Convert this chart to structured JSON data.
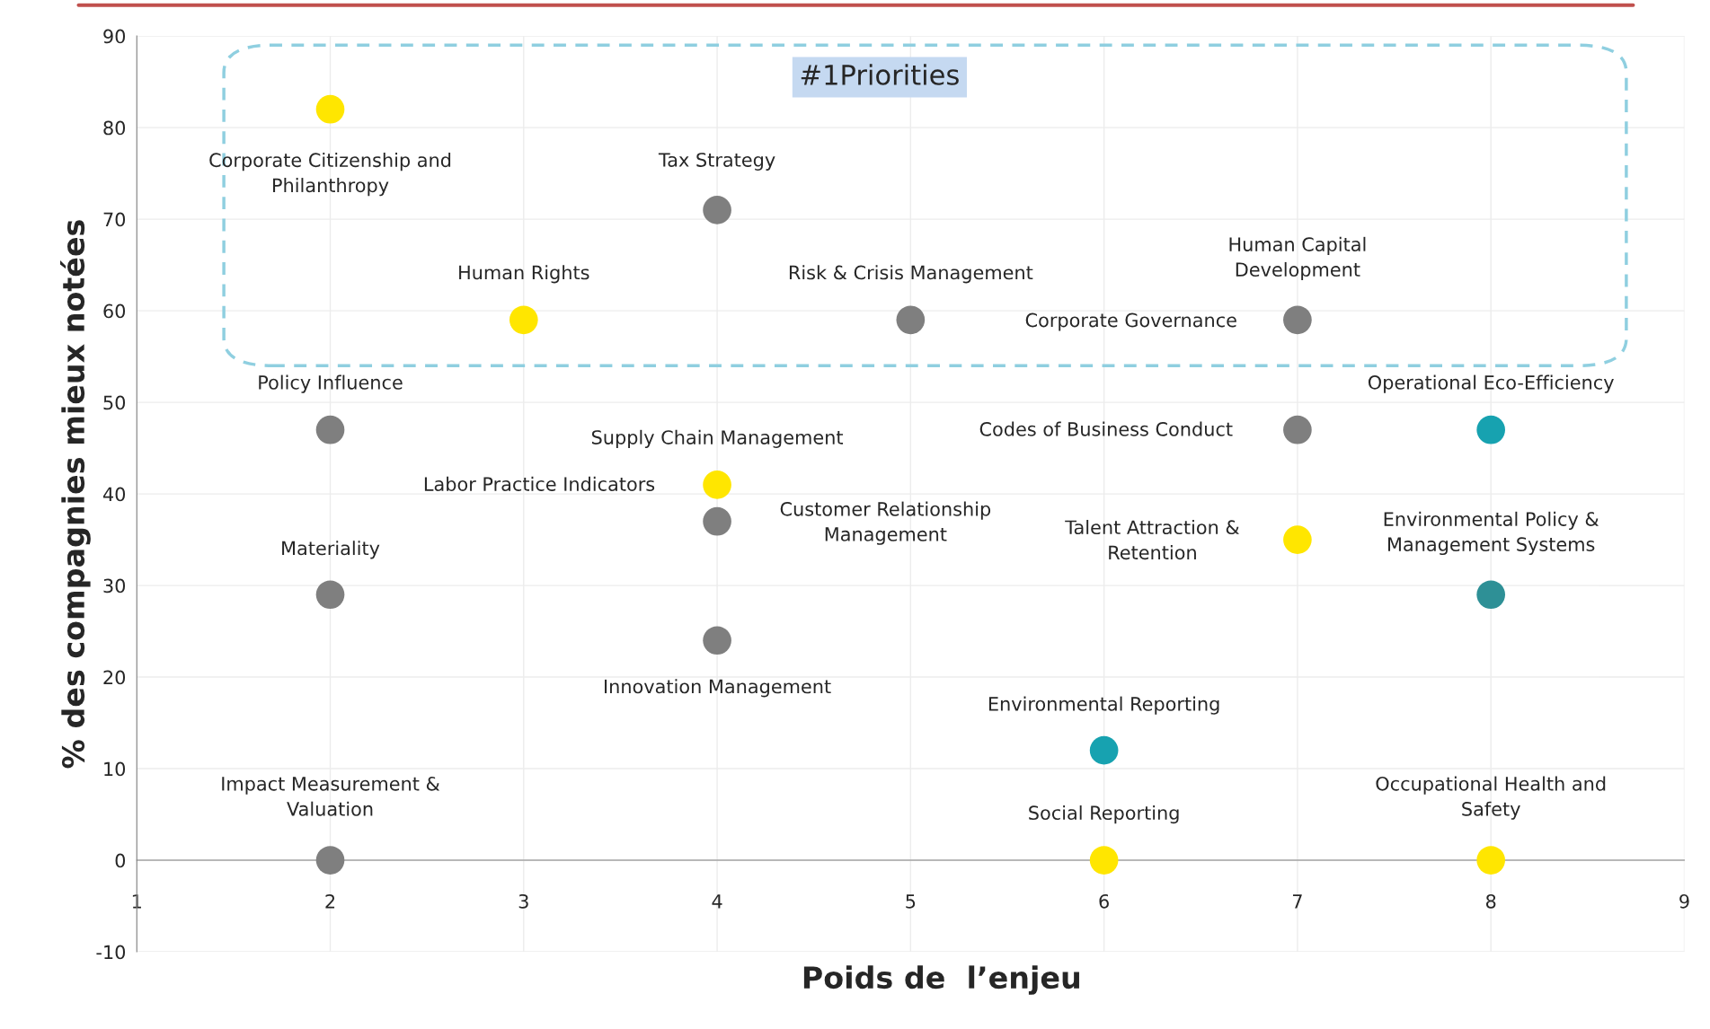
{
  "chart_data": {
    "type": "scatter",
    "xlabel": "Poids de  l’enjeu",
    "ylabel": "% des compagnies mieux notées",
    "xlim": [
      1,
      9
    ],
    "xticks": [
      1,
      2,
      3,
      4,
      5,
      6,
      7,
      8,
      9
    ],
    "ylim": [
      -10,
      90
    ],
    "yticks": [
      -10,
      0,
      10,
      20,
      30,
      40,
      50,
      60,
      70,
      80,
      90
    ],
    "grid": true,
    "marker": "circle",
    "x": [
      2,
      4,
      3,
      5,
      7,
      2,
      7,
      8,
      4,
      4,
      7,
      2,
      8,
      4,
      6,
      2,
      6,
      8
    ],
    "values": [
      82,
      71,
      59,
      59,
      59,
      47,
      47,
      47,
      41,
      37,
      35,
      29,
      29,
      24,
      12,
      0,
      0,
      0
    ],
    "colors": [
      "#ffe600",
      "#7f7f7f",
      "#ffe600",
      "#7f7f7f",
      "#7f7f7f",
      "#7f7f7f",
      "#7f7f7f",
      "#17a2b0",
      "#ffe600",
      "#7f7f7f",
      "#ffe600",
      "#7f7f7f",
      "#2e9096",
      "#7f7f7f",
      "#17a2b0",
      "#7f7f7f",
      "#ffe600",
      "#ffe600"
    ],
    "annotations": [
      "Corporate Citizenship and\nPhilanthropy",
      "Tax Strategy",
      "Human Rights",
      "Risk & Crisis Management",
      "Human Capital\nDevelopment",
      "Corporate Governance",
      "Policy Influence",
      "Codes of Business Conduct",
      "Operational Eco-Efficiency",
      "Supply Chain Management",
      "Labor Practice Indicators",
      "Customer Relationship\nManagement",
      "Talent Attraction &\nRetention",
      "Environmental Policy &\nManagement Systems",
      "Materiality",
      "Innovation Management",
      "Environmental Reporting",
      "Impact Measurement &\nValuation",
      "Social Reporting",
      "Occupational Health and\nSafety",
      "#1Priorities"
    ]
  }
}
